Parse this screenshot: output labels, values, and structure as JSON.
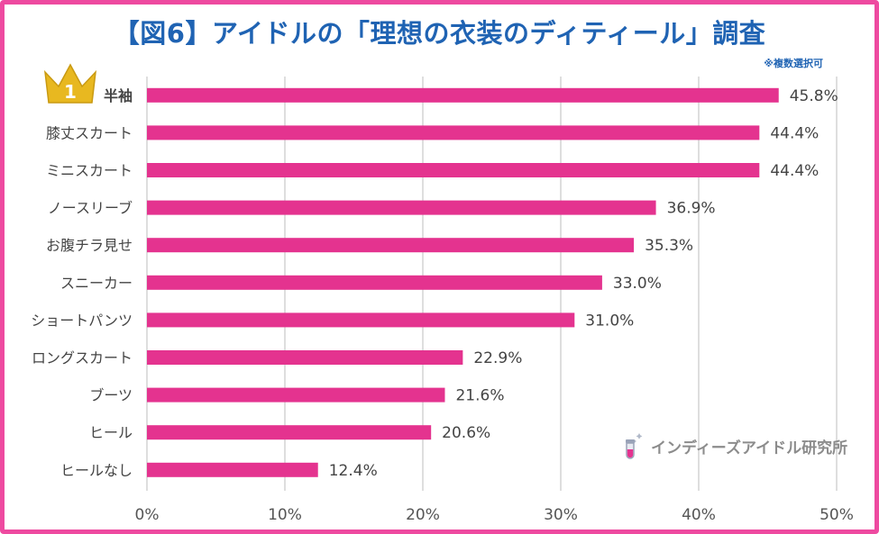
{
  "title": "【図6】アイドルの「理想の衣装のディティール」調査",
  "note": "※複数選択可",
  "watermark": "インディーズアイドル研究所",
  "badge": {
    "rank": "1",
    "icon": "crown-icon"
  },
  "colors": {
    "bar": "#e4338f",
    "frame": "#ee4aa0",
    "title": "#1f63b3",
    "grid": "#d4d4d4",
    "crown": "#e8b820"
  },
  "chart_data": {
    "type": "bar",
    "orientation": "horizontal",
    "categories": [
      "半袖",
      "膝丈スカート",
      "ミニスカート",
      "ノースリーブ",
      "お腹チラ見せ",
      "スニーカー",
      "ショートパンツ",
      "ロングスカート",
      "ブーツ",
      "ヒール",
      "ヒールなし"
    ],
    "values": [
      45.8,
      44.4,
      44.4,
      36.9,
      35.3,
      33.0,
      31.0,
      22.9,
      21.6,
      20.6,
      12.4
    ],
    "value_labels": [
      "45.8%",
      "44.4%",
      "44.4%",
      "36.9%",
      "35.3%",
      "33.0%",
      "31.0%",
      "22.9%",
      "21.6%",
      "20.6%",
      "12.4%"
    ],
    "x_ticks": [
      0,
      10,
      20,
      30,
      40,
      50
    ],
    "x_tick_labels": [
      "0%",
      "10%",
      "20%",
      "30%",
      "40%",
      "50%"
    ],
    "xlim": [
      0,
      50
    ],
    "grid": true,
    "legend": "none"
  }
}
